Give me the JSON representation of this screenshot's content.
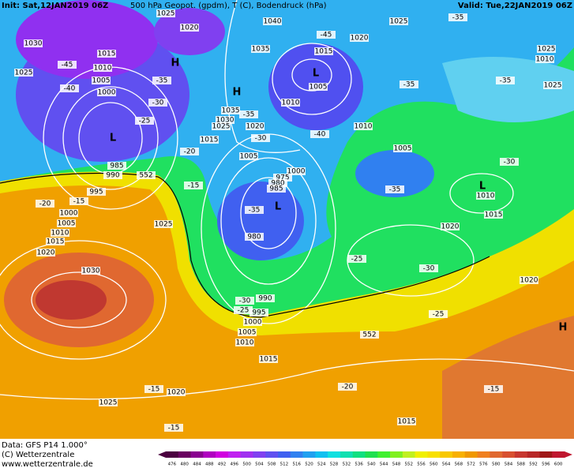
{
  "header": {
    "init": "Init: Sat,12JAN2019 06Z",
    "title": "500 hPa Geopot. (gpdm), T (C), Bodendruck (hPa)",
    "valid": "Valid: Tue,22JAN2019 06Z"
  },
  "footer": {
    "data_source": "Data: GFS P14 1.000°",
    "copyright": "(C) Wetterzentrale",
    "url": "www.wetterzentrale.de"
  },
  "colorbar": {
    "labels": [
      "476",
      "480",
      "484",
      "488",
      "492",
      "496",
      "500",
      "504",
      "508",
      "512",
      "516",
      "520",
      "524",
      "528",
      "532",
      "536",
      "540",
      "544",
      "548",
      "552",
      "556",
      "560",
      "564",
      "568",
      "572",
      "576",
      "580",
      "584",
      "588",
      "592",
      "596",
      "600"
    ],
    "colors": [
      "#4b0040",
      "#6a0060",
      "#8a0090",
      "#b000c0",
      "#d000e0",
      "#c020f0",
      "#a030f0",
      "#8040f0",
      "#6050f0",
      "#4060f0",
      "#3080f0",
      "#20a0f0",
      "#10c0f0",
      "#10e0e0",
      "#10e0b0",
      "#10e080",
      "#20e050",
      "#40f030",
      "#80f020",
      "#c0f020",
      "#f0f000",
      "#f8e000",
      "#f8c800",
      "#f8b000",
      "#f09800",
      "#f08020",
      "#e06830",
      "#d85030",
      "#c83830",
      "#b82828",
      "#a01818",
      "#c01830"
    ]
  },
  "map_labels": [
    "1030",
    "1025",
    "1015",
    "1010",
    "1005",
    "1000",
    "-45",
    "-40",
    "-35",
    "-30",
    "-25",
    "1025",
    "1020",
    "1040",
    "1035",
    "1015",
    "-45",
    "1020",
    "1005",
    "1010",
    "1035",
    "1030",
    "1025",
    "1020",
    "-35",
    "1015",
    "-30",
    "-40",
    "1010",
    "1005",
    "-20",
    "985",
    "990",
    "995",
    "-15",
    "-20",
    "1000",
    "1005",
    "1010",
    "1015",
    "1020",
    "1025",
    "1030",
    "-15",
    "1005",
    "1000",
    "975",
    "980",
    "985",
    "-35",
    "980",
    "-35",
    "1010",
    "1015",
    "1020",
    "-25",
    "-30",
    "1020",
    "-25",
    "990",
    "995",
    "1000",
    "1005",
    "1010",
    "-30",
    "-25",
    "552",
    "1015",
    "-20",
    "-15",
    "1020",
    "1025",
    "-15",
    "1015",
    "-15",
    "1025",
    "-35",
    "1025",
    "1010",
    "-35",
    "1025",
    "-35",
    "-30",
    "552"
  ],
  "pressure_centers": [
    "H",
    "H",
    "L",
    "L",
    "L",
    "L",
    "H"
  ]
}
